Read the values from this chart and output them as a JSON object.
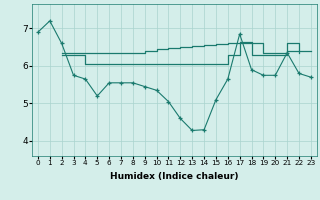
{
  "x": [
    0,
    1,
    2,
    3,
    4,
    5,
    6,
    7,
    8,
    9,
    10,
    11,
    12,
    13,
    14,
    15,
    16,
    17,
    18,
    19,
    20,
    21,
    22,
    23
  ],
  "line_main": [
    6.9,
    7.2,
    6.6,
    5.75,
    5.65,
    5.2,
    5.55,
    5.55,
    5.55,
    5.45,
    5.35,
    5.05,
    4.6,
    4.28,
    4.3,
    5.1,
    5.65,
    6.85,
    5.9,
    5.75,
    5.75,
    6.35,
    5.8,
    5.7
  ],
  "line_upper": [
    null,
    null,
    6.35,
    6.35,
    6.35,
    6.35,
    6.35,
    6.35,
    6.35,
    6.4,
    6.45,
    6.48,
    6.5,
    6.52,
    6.55,
    6.58,
    6.6,
    6.6,
    6.6,
    6.35,
    6.35,
    6.6,
    6.35,
    null
  ],
  "line_lower": [
    null,
    null,
    6.3,
    6.3,
    6.05,
    6.05,
    6.05,
    6.05,
    6.05,
    6.05,
    6.05,
    6.05,
    6.05,
    6.05,
    6.05,
    6.05,
    6.3,
    6.65,
    6.3,
    6.3,
    6.3,
    6.4,
    6.4,
    6.4
  ],
  "background_color": "#d4eeea",
  "grid_color": "#aad4ce",
  "line_color": "#1a7a6e",
  "xlabel": "Humidex (Indice chaleur)",
  "ylim": [
    3.6,
    7.65
  ],
  "xlim": [
    -0.5,
    23.5
  ],
  "yticks": [
    4,
    5,
    6,
    7
  ],
  "xticks": [
    0,
    1,
    2,
    3,
    4,
    5,
    6,
    7,
    8,
    9,
    10,
    11,
    12,
    13,
    14,
    15,
    16,
    17,
    18,
    19,
    20,
    21,
    22,
    23
  ]
}
